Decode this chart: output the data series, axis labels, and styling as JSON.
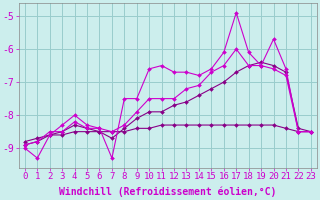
{
  "xlabel": "Windchill (Refroidissement éolien,°C)",
  "bg_color": "#cceeed",
  "grid_color": "#99cccc",
  "line_color": "#cc00cc",
  "line_color_dark": "#880088",
  "tick_color": "#cc00cc",
  "hours": [
    0,
    1,
    2,
    3,
    4,
    5,
    6,
    7,
    8,
    9,
    10,
    11,
    12,
    13,
    14,
    15,
    16,
    17,
    18,
    19,
    20,
    21,
    22,
    23
  ],
  "series1": [
    -9.0,
    -9.3,
    -8.6,
    -8.3,
    -8.0,
    -8.3,
    -8.4,
    -9.3,
    -7.5,
    -7.5,
    -6.6,
    -6.5,
    -6.7,
    -6.7,
    -6.8,
    -6.6,
    -6.1,
    -4.9,
    -6.1,
    -6.5,
    -5.7,
    -6.6,
    -8.5,
    -8.5
  ],
  "series2": [
    -8.9,
    -8.8,
    -8.5,
    -8.5,
    -8.2,
    -8.4,
    -8.4,
    -8.5,
    -8.3,
    -7.9,
    -7.5,
    -7.5,
    -7.5,
    -7.2,
    -7.1,
    -6.7,
    -6.5,
    -6.0,
    -6.5,
    -6.5,
    -6.6,
    -6.8,
    -8.5,
    -8.5
  ],
  "series3": [
    -8.9,
    -8.8,
    -8.6,
    -8.5,
    -8.3,
    -8.4,
    -8.5,
    -8.7,
    -8.4,
    -8.1,
    -7.9,
    -7.9,
    -7.7,
    -7.6,
    -7.4,
    -7.2,
    -7.0,
    -6.7,
    -6.5,
    -6.4,
    -6.5,
    -6.7,
    -8.4,
    -8.5
  ],
  "series4": [
    -8.8,
    -8.7,
    -8.6,
    -8.6,
    -8.5,
    -8.5,
    -8.5,
    -8.5,
    -8.5,
    -8.4,
    -8.4,
    -8.3,
    -8.3,
    -8.3,
    -8.3,
    -8.3,
    -8.3,
    -8.3,
    -8.3,
    -8.3,
    -8.3,
    -8.4,
    -8.5,
    -8.5
  ],
  "ylim": [
    -9.6,
    -4.6
  ],
  "yticks": [
    -9,
    -8,
    -7,
    -6,
    -5
  ],
  "fontsize_label": 7,
  "fontsize_tick": 6.5
}
